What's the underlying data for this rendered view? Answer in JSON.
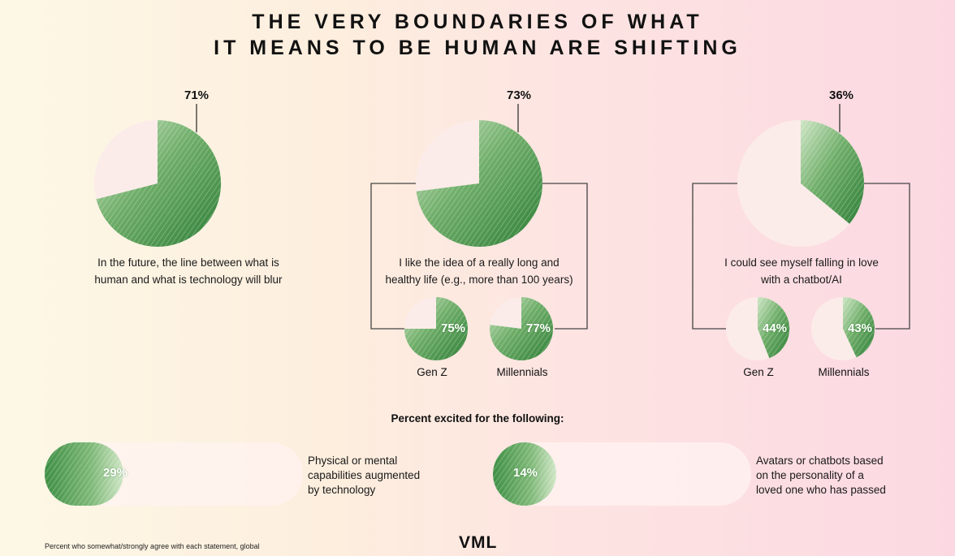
{
  "title_line1": "THE VERY BOUNDARIES OF WHAT",
  "title_line2": "IT MEANS TO BE HUMAN ARE SHIFTING",
  "colors": {
    "green": "#3f8f45",
    "light_green": "#b9dcb1",
    "pie_bg": "#fbece9"
  },
  "chart_data": {
    "type": "pie",
    "title": "THE VERY BOUNDARIES OF WHAT IT MEANS TO BE HUMAN ARE SHIFTING",
    "statements": [
      {
        "label": "71%",
        "value": 71,
        "caption": [
          "In the future, the line between what is",
          "human and what is technology will blur"
        ],
        "breakdown": []
      },
      {
        "label": "73%",
        "value": 73,
        "caption": [
          "I like the idea of a really long and",
          "healthy life (e.g., more than 100 years)"
        ],
        "breakdown": [
          {
            "group": "Gen Z",
            "label": "75%",
            "value": 75
          },
          {
            "group": "Millennials",
            "label": "77%",
            "value": 77
          }
        ]
      },
      {
        "label": "36%",
        "value": 36,
        "caption": [
          "I could see myself falling in love",
          "with a chatbot/AI"
        ],
        "breakdown": [
          {
            "group": "Gen Z",
            "label": "44%",
            "value": 44
          },
          {
            "group": "Millennials",
            "label": "43%",
            "value": 43
          }
        ]
      }
    ],
    "excited_title": "Percent excited for the following:",
    "excited": [
      {
        "label": "29%",
        "value": 29,
        "text": [
          "Physical or mental",
          "capabilities augmented",
          "by technology"
        ]
      },
      {
        "label": "14%",
        "value": 14,
        "text": [
          "Avatars or chatbots based",
          "on the personality of a",
          "loved one who has passed"
        ]
      }
    ]
  },
  "footnote": "Percent who somewhat/strongly agree with each statement, global",
  "logo": "VML"
}
